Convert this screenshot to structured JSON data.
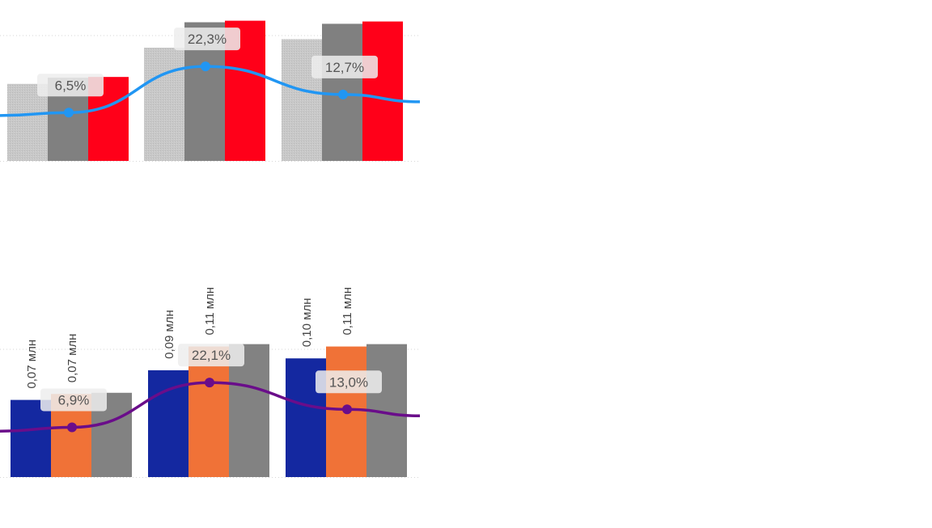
{
  "chart_data": [
    {
      "type": "bar",
      "categories": [
        "",
        "",
        ""
      ],
      "series": [
        {
          "values": [
            100,
            147,
            158
          ],
          "color": "#c8c8c8"
        },
        {
          "values": [
            108,
            180,
            178
          ],
          "color": "#808080"
        },
        {
          "values": [
            109,
            182,
            181
          ],
          "color": "#ff0019"
        }
      ],
      "line": {
        "values": [
          6.5,
          22.3,
          12.7
        ],
        "labels": [
          "6,5%",
          "22,3%",
          "12,7%"
        ],
        "color": "#2196f3",
        "ylim": [
          -10,
          40
        ]
      },
      "ylim": [
        0,
        190
      ],
      "grid": true
    },
    {
      "type": "bar",
      "categories": [
        "",
        "",
        ""
      ],
      "series": [
        {
          "values": [
            0.065,
            0.09,
            0.1
          ],
          "color": "#1428a0",
          "labels": [
            "0,07 млн",
            "0,09 млн",
            "0,10 млн"
          ]
        },
        {
          "values": [
            0.07,
            0.11,
            0.11
          ],
          "color": "#f07237",
          "labels": [
            "0,07 млн",
            "0,11 млн",
            "0,11 млн"
          ]
        },
        {
          "values": [
            0.071,
            0.112,
            0.112
          ],
          "color": "#828282"
        }
      ],
      "line": {
        "values": [
          6.9,
          22.1,
          13.0
        ],
        "labels": [
          "6,9%",
          "22,1%",
          "13,0%"
        ],
        "color": "#6a0d8a",
        "ylim": [
          -10,
          40
        ]
      },
      "ylim": [
        0,
        0.124
      ],
      "grid": true
    }
  ]
}
